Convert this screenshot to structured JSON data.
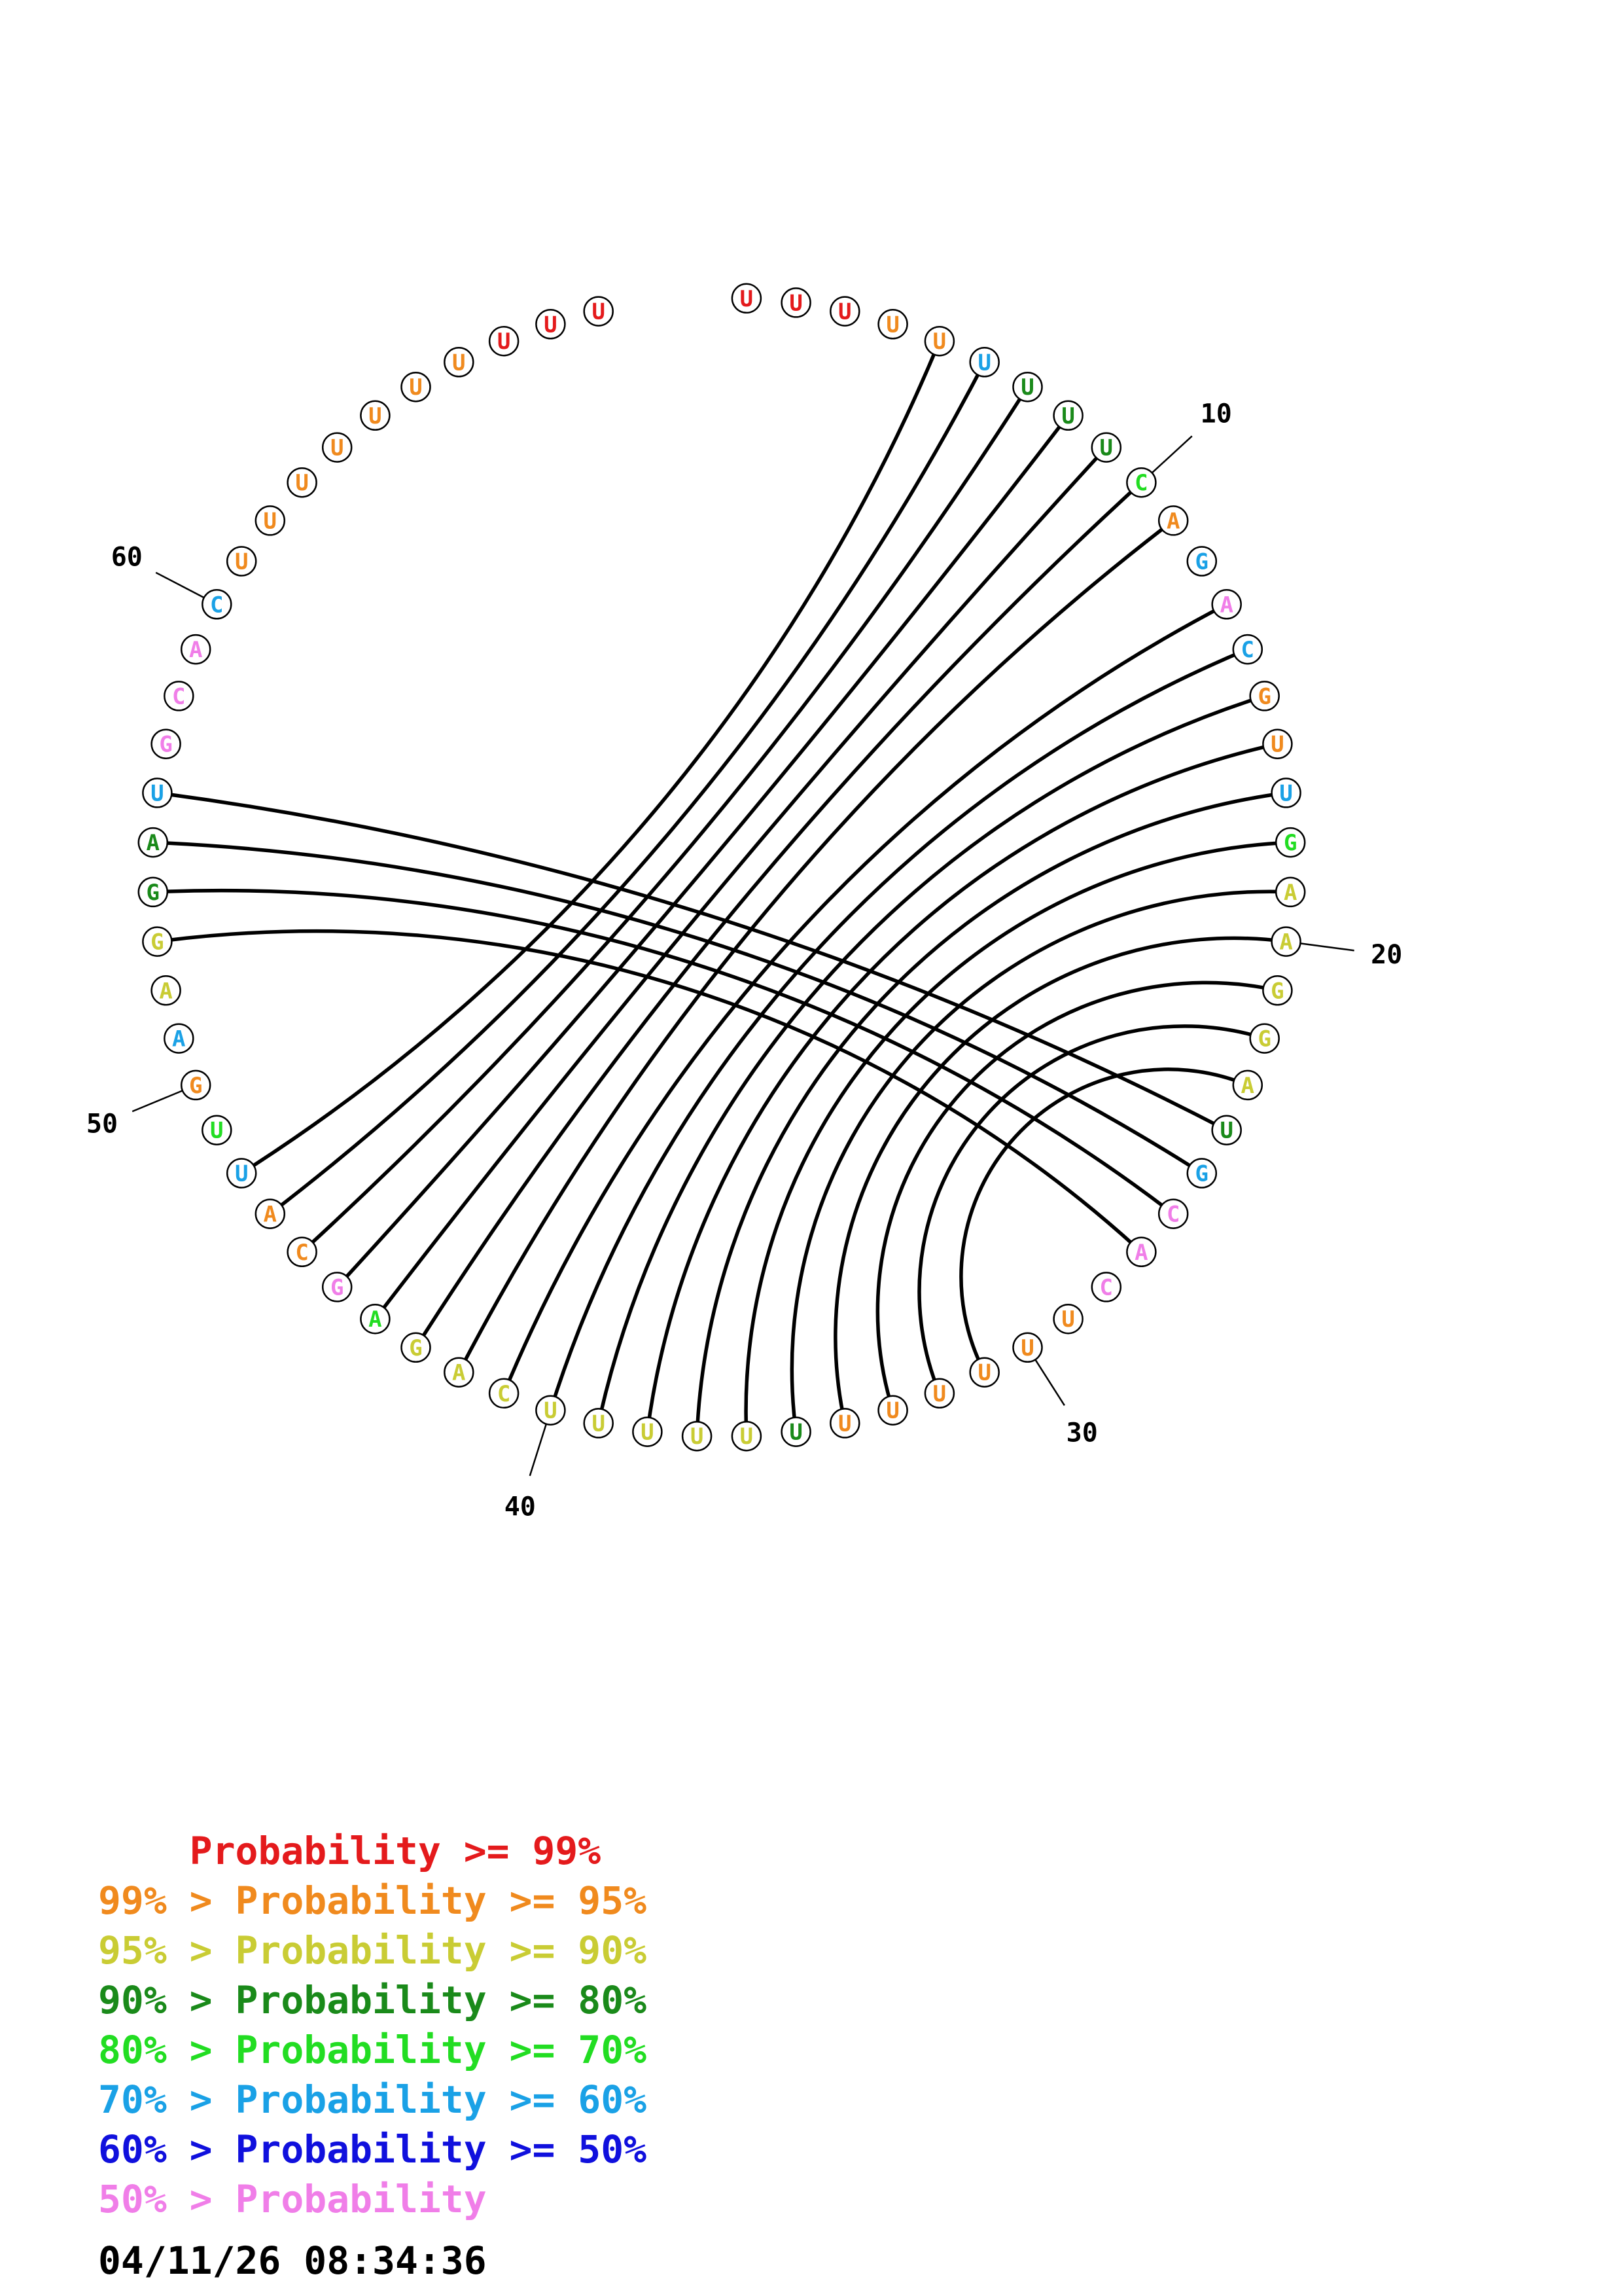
{
  "diagram": {
    "sequence": "UUUUUUUUUCAGACGUUGAAGGAUGCACUUUUUUUUUUUUCAGAGCAUUGAAGGAUGCACUUUUUUUUUU",
    "colors": "rrroobggglobpbooblyyyyygbpppoooooogyyyyyyyylpooblobyyggbpppbooooooorrr",
    "palette": {
      "r": "#e41a1c",
      "o": "#f08a1e",
      "y": "#c9cc34",
      "g": "#1a8a1a",
      "l": "#22dd22",
      "b": "#1aa1e6",
      "p": "#f07ee8"
    },
    "pairs": [
      [
        5,
        48
      ],
      [
        6,
        47
      ],
      [
        7,
        46
      ],
      [
        8,
        45
      ],
      [
        9,
        44
      ],
      [
        10,
        43
      ],
      [
        11,
        42
      ],
      [
        13,
        41
      ],
      [
        14,
        40
      ],
      [
        15,
        39
      ],
      [
        16,
        38
      ],
      [
        17,
        37
      ],
      [
        18,
        36
      ],
      [
        19,
        35
      ],
      [
        20,
        34
      ],
      [
        21,
        33
      ],
      [
        22,
        32
      ],
      [
        23,
        31
      ],
      [
        24,
        56
      ],
      [
        25,
        55
      ],
      [
        26,
        54
      ],
      [
        27,
        53
      ]
    ],
    "tick_labels": [
      {
        "index": 10,
        "label": "10"
      },
      {
        "index": 20,
        "label": "20"
      },
      {
        "index": 30,
        "label": "30"
      },
      {
        "index": 40,
        "label": "40"
      },
      {
        "index": 50,
        "label": "50"
      },
      {
        "index": 60,
        "label": "60"
      }
    ]
  },
  "legend": [
    {
      "text": "    Probability >= 99%",
      "color": "#e41a1c"
    },
    {
      "text": "99% > Probability >= 95%",
      "color": "#f08a1e"
    },
    {
      "text": "95% > Probability >= 90%",
      "color": "#c9cc34"
    },
    {
      "text": "90% > Probability >= 80%",
      "color": "#1a8a1a"
    },
    {
      "text": "80% > Probability >= 70%",
      "color": "#22dd22"
    },
    {
      "text": "70% > Probability >= 60%",
      "color": "#1aa1e6"
    },
    {
      "text": "60% > Probability >= 50%",
      "color": "#1010dd"
    },
    {
      "text": "50% > Probability",
      "color": "#f07ee8"
    }
  ],
  "timestamp": "04/11/26 08:34:36"
}
